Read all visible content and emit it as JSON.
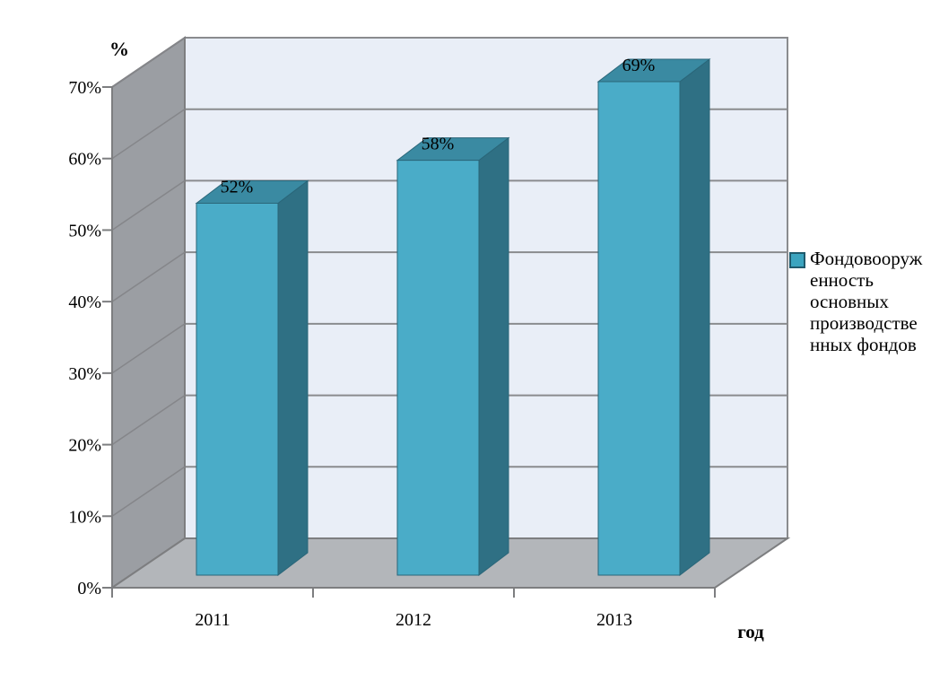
{
  "colors": {
    "background": "#ffffff",
    "back_wall": "#e9eef7",
    "side_wall": "#9b9ea3",
    "floor": "#b3b6ba",
    "gridline": "#8a8b8e",
    "wall_diagonal": "#85868a",
    "axis_line": "#7d7e80",
    "bar_front": "#4aacc8",
    "bar_top": "#3a8aa2",
    "bar_side": "#2f7084",
    "bar_edge": "#2a6679",
    "legend_marker_fill": "#3ba4bf",
    "legend_marker_border": "#1f5a6d",
    "text": "#000000"
  },
  "chart_data": {
    "type": "bar",
    "projection": "3d",
    "categories": [
      "2011",
      "2012",
      "2013"
    ],
    "series": [
      {
        "name": "Фондовооруженность основных производственных фондов",
        "values": [
          52,
          58,
          69
        ]
      }
    ],
    "data_labels": [
      "52%",
      "58%",
      "69%"
    ],
    "xlabel": "год",
    "ylabel": "%",
    "ylim": [
      0,
      70
    ],
    "ytick_step": 10,
    "ytick_labels": [
      "0%",
      "10%",
      "20%",
      "30%",
      "40%",
      "50%",
      "60%",
      "70%"
    ],
    "grid": true,
    "legend_position": "right"
  },
  "legend": {
    "lines": [
      "Фондовооруж",
      "енность",
      "основных",
      "производстве",
      "нных фондов"
    ]
  }
}
